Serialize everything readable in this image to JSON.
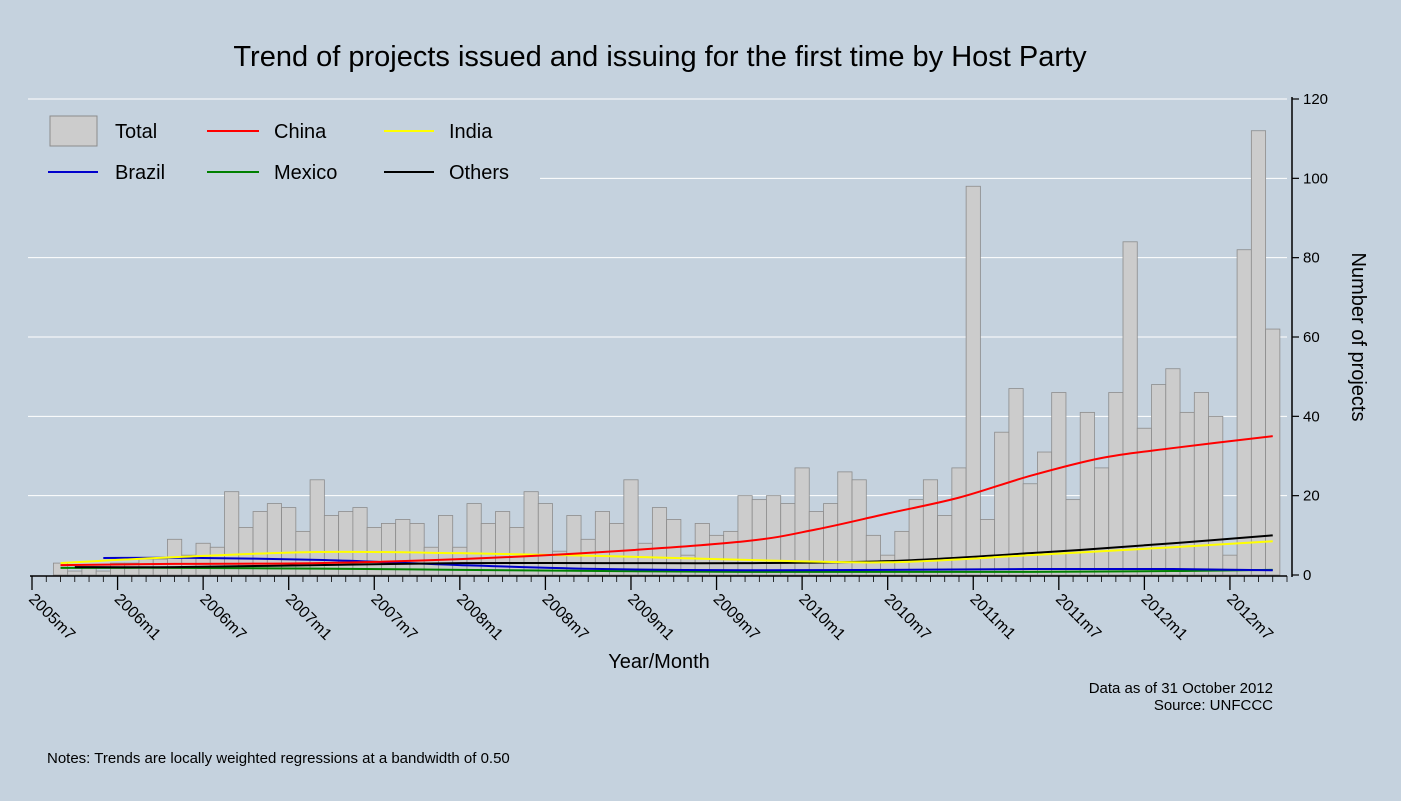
{
  "chart_data": {
    "type": "bar",
    "title": "Trend of projects issued and issuing for the first time by Host Party",
    "xlabel": "Year/Month",
    "ylabel": "Number of projects",
    "ylim": [
      0,
      120
    ],
    "yticks": [
      0,
      20,
      40,
      60,
      80,
      100,
      120
    ],
    "y_axis_side": "right",
    "grid": true,
    "legend_position": "top-left",
    "colors": {
      "background": "#c5d2de",
      "bar_fill": "#cccccc",
      "bar_stroke": "#8c8c8c",
      "gridline": "#ffffff",
      "China": "#ff0000",
      "India": "#ffff00",
      "Brazil": "#0000cc",
      "Mexico": "#008000",
      "Others": "#000000"
    },
    "x_tick_labels": [
      "2005m7",
      "2006m1",
      "2006m7",
      "2007m1",
      "2007m7",
      "2008m1",
      "2008m7",
      "2009m1",
      "2009m7",
      "2010m1",
      "2010m7",
      "2011m1",
      "2011m7",
      "2012m1",
      "2012m7"
    ],
    "x_tick_month_index": [
      0,
      6,
      12,
      18,
      24,
      30,
      36,
      42,
      48,
      54,
      60,
      66,
      72,
      78,
      84
    ],
    "month_index_range": [
      0,
      88
    ],
    "bar_name": "Total",
    "bar_month_index": [
      2,
      3,
      4,
      5,
      6,
      7,
      8,
      9,
      10,
      11,
      12,
      13,
      14,
      15,
      16,
      17,
      18,
      19,
      20,
      21,
      22,
      23,
      24,
      25,
      26,
      27,
      28,
      29,
      30,
      31,
      32,
      33,
      34,
      35,
      36,
      37,
      38,
      39,
      40,
      41,
      42,
      43,
      44,
      45,
      46,
      47,
      48,
      49,
      50,
      51,
      52,
      53,
      54,
      55,
      56,
      57,
      58,
      59,
      60,
      61,
      62,
      63,
      64,
      65,
      66,
      67,
      68,
      69,
      70,
      71,
      72,
      73,
      74,
      75,
      76,
      77,
      78,
      79,
      80,
      81,
      82,
      83,
      84,
      85,
      86,
      87
    ],
    "values": [
      3,
      1,
      2,
      1,
      3,
      3,
      4,
      4,
      9,
      5,
      8,
      7,
      21,
      12,
      16,
      18,
      17,
      11,
      24,
      15,
      16,
      17,
      12,
      13,
      14,
      13,
      7,
      15,
      7,
      18,
      13,
      16,
      12,
      21,
      18,
      6,
      15,
      9,
      16,
      13,
      24,
      8,
      17,
      14,
      5,
      13,
      10,
      11,
      20,
      19,
      20,
      18,
      27,
      16,
      18,
      26,
      24,
      10,
      5,
      11,
      19,
      24,
      15,
      27,
      98,
      14,
      36,
      47,
      23,
      31,
      46,
      19,
      41,
      27,
      46,
      84,
      37,
      48,
      52,
      41,
      46,
      40,
      5,
      82,
      112,
      62
    ],
    "series": [
      {
        "name": "China",
        "x": [
          2,
          10,
          20,
          30,
          40,
          50,
          55,
          60,
          65,
          70,
          75,
          80,
          87
        ],
        "values": [
          2.5,
          2.8,
          3.0,
          4.0,
          5.8,
          8.5,
          11.5,
          15.5,
          19.5,
          25.0,
          29.5,
          32.0,
          35.0
        ]
      },
      {
        "name": "India",
        "x": [
          2,
          10,
          20,
          30,
          40,
          50,
          60,
          70,
          80,
          87
        ],
        "values": [
          3.0,
          4.5,
          5.8,
          5.5,
          4.8,
          3.8,
          3.2,
          5.0,
          7.0,
          8.5
        ]
      },
      {
        "name": "Brazil",
        "x": [
          5,
          12,
          20,
          25,
          30,
          40,
          50,
          60,
          70,
          80,
          87
        ],
        "values": [
          4.3,
          4.3,
          3.8,
          3.2,
          2.5,
          1.5,
          1.2,
          1.3,
          1.5,
          1.5,
          1.2
        ]
      },
      {
        "name": "Mexico",
        "x": [
          2,
          10,
          20,
          30,
          40,
          50,
          60,
          70,
          80,
          87
        ],
        "values": [
          1.8,
          1.8,
          1.6,
          1.3,
          1.0,
          0.8,
          0.8,
          0.8,
          1.0,
          1.3
        ]
      },
      {
        "name": "Others",
        "x": [
          3,
          10,
          20,
          30,
          40,
          50,
          60,
          70,
          80,
          87
        ],
        "values": [
          2.0,
          2.0,
          2.5,
          3.0,
          3.0,
          3.0,
          3.5,
          5.5,
          8.0,
          10.0
        ]
      }
    ],
    "legend": [
      "Total",
      "China",
      "India",
      "Brazil",
      "Mexico",
      "Others"
    ],
    "annotations": {
      "data_as_of": "Data as of 31 October 2012",
      "source": "Source: UNFCCC",
      "notes": "Notes: Trends are locally weighted regressions at a bandwidth of 0.50"
    }
  }
}
